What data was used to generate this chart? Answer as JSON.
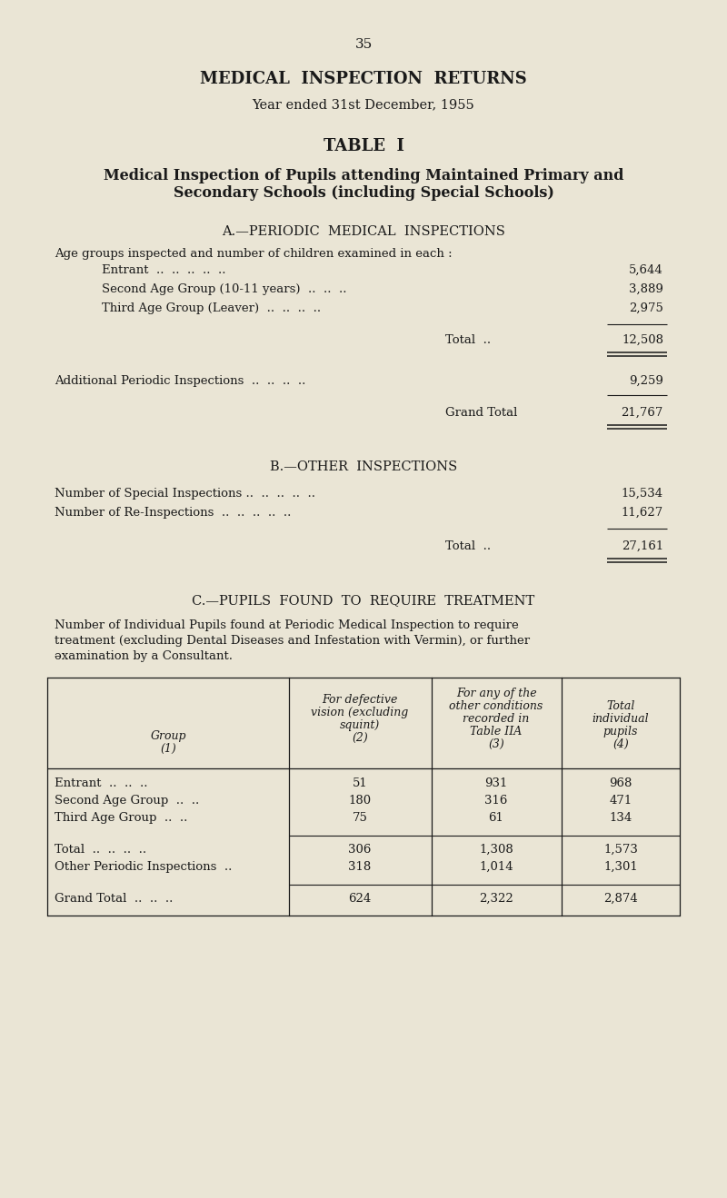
{
  "bg_color": "#EAE5D5",
  "text_color": "#1a1a1a",
  "page_number": "35",
  "main_title": "MEDICAL  INSPECTION  RETURNS",
  "subtitle": "Year ended 31st December, 1955",
  "table_title": "TABLE  I",
  "table_subtitle_line1": "Medical Inspection of Pupils attending Maintained Primary and",
  "table_subtitle_line2": "Secondary Schools (including Special Schools)",
  "section_a_title": "A.—PERIODIC  MEDICAL  INSPECTIONS",
  "section_a_intro": "Age groups inspected and number of children examined in each :",
  "section_a_rows": [
    [
      "Entrant  ..  ..  ..  ..  ..",
      "5,644"
    ],
    [
      "Second Age Group (10-11 years)  ..  ..  ..",
      "3,889"
    ],
    [
      "Third Age Group (Leaver)  ..  ..  ..  ..",
      "2,975"
    ]
  ],
  "section_a_total_label": "Total  ..",
  "section_a_total_value": "12,508",
  "section_a_additional_label": "Additional Periodic Inspections  ..  ..  ..  ..",
  "section_a_additional_value": "9,259",
  "section_a_grand_label": "Grand Total",
  "section_a_grand_value": "21,767",
  "section_b_title": "B.—OTHER  INSPECTIONS",
  "section_b_rows": [
    [
      "Number of Special Inspections ..  ..  ..  ..  ..",
      "15,534"
    ],
    [
      "Number of Re-Inspections  ..  ..  ..  ..  ..",
      "11,627"
    ]
  ],
  "section_b_total_label": "Total  ..",
  "section_b_total_value": "27,161",
  "section_c_title": "C.—PUPILS  FOUND  TO  REQUIRE  TREATMENT",
  "section_c_intro_line1": "Number of Individual Pupils found at Periodic Medical Inspection to require",
  "section_c_intro_line2": "treatment (excluding Dental Diseases and Infestation with Vermin), or further",
  "section_c_intro_line3": "əxamination by a Consultant.",
  "table_rows": [
    [
      "Entrant  ..  ..  ..",
      "51",
      "931",
      "968"
    ],
    [
      "Second Age Group  ..  ..",
      "180",
      "316",
      "471"
    ],
    [
      "Third Age Group  ..  ..",
      "75",
      "61",
      "134"
    ]
  ],
  "table_totals": [
    [
      "Total  ..  ..  ..  ..",
      "306",
      "1,308",
      "1,573"
    ],
    [
      "Other Periodic Inspections  ..",
      "318",
      "1,014",
      "1,301"
    ]
  ],
  "table_grand": [
    "Grand Total  ..  ..  ..",
    "624",
    "2,322",
    "2,874"
  ]
}
